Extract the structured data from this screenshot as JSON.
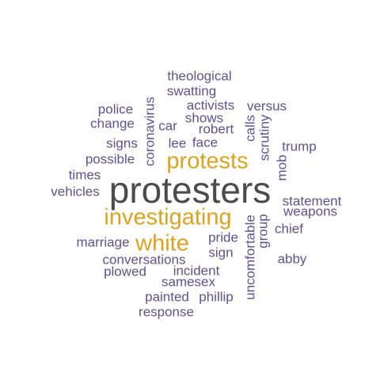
{
  "words": [
    {
      "text": "protesters",
      "tier": 1,
      "vertical": false
    },
    {
      "text": "investigating",
      "tier": 2,
      "vertical": false
    },
    {
      "text": "protests",
      "tier": 2,
      "vertical": false
    },
    {
      "text": "white",
      "tier": 2,
      "vertical": false
    },
    {
      "text": "theological",
      "tier": 3,
      "vertical": false
    },
    {
      "text": "swatting",
      "tier": 3,
      "vertical": false
    },
    {
      "text": "activists",
      "tier": 3,
      "vertical": false
    },
    {
      "text": "versus",
      "tier": 3,
      "vertical": false
    },
    {
      "text": "police",
      "tier": 3,
      "vertical": false
    },
    {
      "text": "change",
      "tier": 3,
      "vertical": false
    },
    {
      "text": "shows",
      "tier": 3,
      "vertical": false
    },
    {
      "text": "car",
      "tier": 3,
      "vertical": false
    },
    {
      "text": "robert",
      "tier": 3,
      "vertical": false
    },
    {
      "text": "coronavirus",
      "tier": 3,
      "vertical": true
    },
    {
      "text": "calls",
      "tier": 3,
      "vertical": true
    },
    {
      "text": "scrutiny",
      "tier": 3,
      "vertical": true
    },
    {
      "text": "signs",
      "tier": 3,
      "vertical": false
    },
    {
      "text": "lee",
      "tier": 3,
      "vertical": false
    },
    {
      "text": "face",
      "tier": 3,
      "vertical": false
    },
    {
      "text": "trump",
      "tier": 3,
      "vertical": false
    },
    {
      "text": "possible",
      "tier": 3,
      "vertical": false
    },
    {
      "text": "mob",
      "tier": 3,
      "vertical": true
    },
    {
      "text": "times",
      "tier": 3,
      "vertical": false
    },
    {
      "text": "vehicles",
      "tier": 3,
      "vertical": false
    },
    {
      "text": "statement",
      "tier": 3,
      "vertical": false
    },
    {
      "text": "weapons",
      "tier": 3,
      "vertical": false
    },
    {
      "text": "uncomfortable",
      "tier": 3,
      "vertical": true
    },
    {
      "text": "group",
      "tier": 3,
      "vertical": true
    },
    {
      "text": "chief",
      "tier": 3,
      "vertical": false
    },
    {
      "text": "marriage",
      "tier": 3,
      "vertical": false
    },
    {
      "text": "pride",
      "tier": 3,
      "vertical": false
    },
    {
      "text": "sign",
      "tier": 3,
      "vertical": false
    },
    {
      "text": "abby",
      "tier": 3,
      "vertical": false
    },
    {
      "text": "conversations",
      "tier": 3,
      "vertical": false
    },
    {
      "text": "plowed",
      "tier": 3,
      "vertical": false
    },
    {
      "text": "incident",
      "tier": 3,
      "vertical": false
    },
    {
      "text": "samesex",
      "tier": 3,
      "vertical": false
    },
    {
      "text": "painted",
      "tier": 3,
      "vertical": false
    },
    {
      "text": "phillip",
      "tier": 3,
      "vertical": false
    },
    {
      "text": "response",
      "tier": 3,
      "vertical": false
    }
  ]
}
